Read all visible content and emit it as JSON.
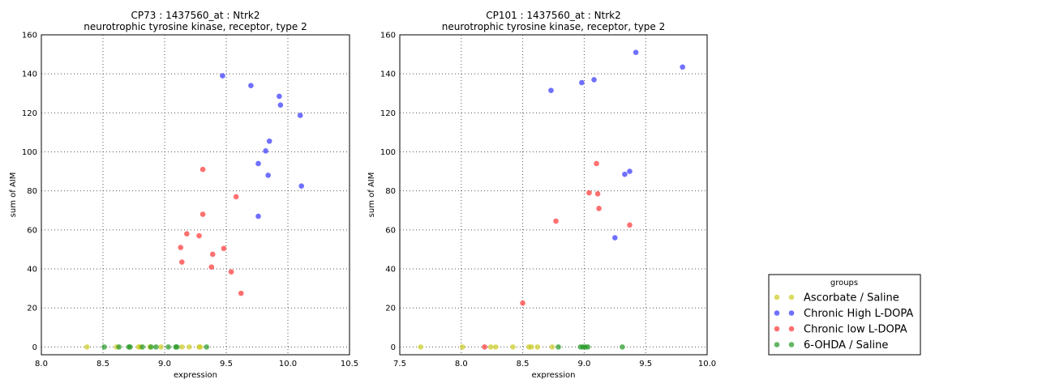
{
  "chart_data": [
    {
      "type": "scatter",
      "title": "CP73 : 1437560_at : Ntrk2",
      "subtitle": "neurotrophic tyrosine kinase, receptor, type 2",
      "xlabel": "expression",
      "ylabel": "sum of AIM",
      "xlim": [
        8.0,
        10.5
      ],
      "ylim": [
        -4,
        160
      ],
      "xticks": [
        "8.0",
        "8.5",
        "9.0",
        "9.5",
        "10.0",
        "10.5"
      ],
      "yticks": [
        "0",
        "20",
        "40",
        "60",
        "80",
        "100",
        "120",
        "140",
        "160"
      ],
      "grid": true,
      "series": [
        {
          "name": "Ascorbate / Saline",
          "color": "#cccc22",
          "points": [
            [
              8.37,
              0
            ],
            [
              8.61,
              0
            ],
            [
              8.79,
              0
            ],
            [
              8.8,
              0
            ],
            [
              8.88,
              0
            ],
            [
              8.97,
              0
            ],
            [
              9.14,
              0
            ],
            [
              9.2,
              0
            ],
            [
              9.28,
              0
            ],
            [
              9.29,
              0
            ]
          ]
        },
        {
          "name": "Chronic High L-DOPA",
          "color": "#3333ff",
          "points": [
            [
              9.47,
              139
            ],
            [
              9.7,
              134
            ],
            [
              9.93,
              128.5
            ],
            [
              9.94,
              124
            ],
            [
              10.1,
              118.7
            ],
            [
              9.85,
              105.5
            ],
            [
              9.82,
              100.5
            ],
            [
              9.76,
              94
            ],
            [
              9.84,
              88
            ],
            [
              10.11,
              82.5
            ],
            [
              9.76,
              67
            ]
          ]
        },
        {
          "name": "Chronic low L-DOPA",
          "color": "#ff3333",
          "points": [
            [
              9.31,
              91
            ],
            [
              9.58,
              77
            ],
            [
              9.31,
              68
            ],
            [
              9.18,
              58
            ],
            [
              9.28,
              57
            ],
            [
              9.13,
              51
            ],
            [
              9.48,
              50.5
            ],
            [
              9.39,
              47.5
            ],
            [
              9.14,
              43.5
            ],
            [
              9.38,
              41
            ],
            [
              9.54,
              38.5
            ],
            [
              9.62,
              27.5
            ]
          ]
        },
        {
          "name": "6-OHDA / Saline",
          "color": "#229922",
          "points": [
            [
              8.51,
              0
            ],
            [
              8.63,
              0
            ],
            [
              8.71,
              0
            ],
            [
              8.72,
              0
            ],
            [
              8.82,
              0
            ],
            [
              8.89,
              0
            ],
            [
              8.93,
              0
            ],
            [
              9.03,
              0
            ],
            [
              9.09,
              0
            ],
            [
              9.1,
              0
            ],
            [
              9.34,
              0
            ]
          ]
        }
      ]
    },
    {
      "type": "scatter",
      "title": "CP101 : 1437560_at : Ntrk2",
      "subtitle": "neurotrophic tyrosine kinase, receptor, type 2",
      "xlabel": "expression",
      "ylabel": "sum of AIM",
      "xlim": [
        7.5,
        10.0
      ],
      "ylim": [
        -4,
        160
      ],
      "xticks": [
        "7.5",
        "8.0",
        "8.5",
        "9.0",
        "9.5",
        "10.0"
      ],
      "yticks": [
        "0",
        "20",
        "40",
        "60",
        "80",
        "100",
        "120",
        "140",
        "160"
      ],
      "grid": true,
      "series": [
        {
          "name": "Ascorbate / Saline",
          "color": "#cccc22",
          "points": [
            [
              7.67,
              0
            ],
            [
              8.01,
              0
            ],
            [
              8.24,
              0
            ],
            [
              8.28,
              0
            ],
            [
              8.42,
              0
            ],
            [
              8.55,
              0
            ],
            [
              8.57,
              0
            ],
            [
              8.62,
              0
            ],
            [
              8.74,
              0
            ]
          ]
        },
        {
          "name": "Chronic High L-DOPA",
          "color": "#3333ff",
          "points": [
            [
              8.73,
              131.5
            ],
            [
              8.98,
              135.5
            ],
            [
              9.08,
              137
            ],
            [
              9.42,
              151
            ],
            [
              9.8,
              143.5
            ],
            [
              9.33,
              88.5
            ],
            [
              9.37,
              90
            ],
            [
              9.25,
              56
            ]
          ]
        },
        {
          "name": "Chronic low L-DOPA",
          "color": "#ff3333",
          "points": [
            [
              9.1,
              94
            ],
            [
              9.04,
              79
            ],
            [
              9.11,
              78.5
            ],
            [
              9.12,
              71
            ],
            [
              9.37,
              62.5
            ],
            [
              8.77,
              64.5
            ],
            [
              8.5,
              22.5
            ],
            [
              8.19,
              0
            ]
          ]
        },
        {
          "name": "6-OHDA / Saline",
          "color": "#229922",
          "points": [
            [
              8.79,
              0
            ],
            [
              8.97,
              0
            ],
            [
              8.99,
              0
            ],
            [
              9.01,
              0
            ],
            [
              9.03,
              0
            ],
            [
              9.31,
              0
            ]
          ]
        }
      ]
    }
  ],
  "legend": {
    "title": "groups",
    "placement": "right",
    "items": [
      "Ascorbate / Saline",
      "Chronic High L-DOPA",
      "Chronic low L-DOPA",
      "6-OHDA / Saline"
    ]
  }
}
